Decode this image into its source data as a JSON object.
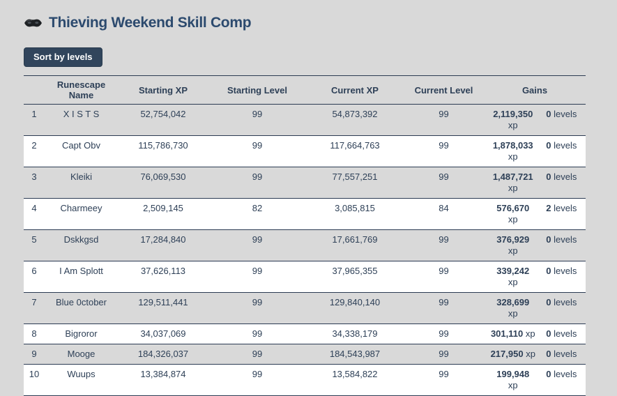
{
  "header": {
    "title": "Thieving Weekend Skill Comp",
    "icon": "thieving-mask-icon"
  },
  "toolbar": {
    "sort_button_label": "Sort by levels"
  },
  "colors": {
    "page_background": "#d9d9d9",
    "title_blue": "#2c4a6e",
    "text_navy": "#2e4057",
    "button_bg": "#31455c",
    "row_stripe_white": "#ffffff",
    "divider_navy": "#2b3a52"
  },
  "table": {
    "columns": [
      "",
      "Runescape Name",
      "Starting XP",
      "Starting Level",
      "Current XP",
      "Current Level",
      "Gains"
    ],
    "rows": [
      {
        "rank": "1",
        "name": "X I S T S",
        "starting_xp": "52,754,042",
        "starting_level": "99",
        "current_xp": "54,873,392",
        "current_level": "99",
        "gains": {
          "xp_value": "2,119,350",
          "xp_unit": "xp",
          "xp_wrap": true,
          "levels_value": "0",
          "levels_unit": "levels"
        }
      },
      {
        "rank": "2",
        "name": "Capt Obv",
        "starting_xp": "115,786,730",
        "starting_level": "99",
        "current_xp": "117,664,763",
        "current_level": "99",
        "gains": {
          "xp_value": "1,878,033",
          "xp_unit": "xp",
          "xp_wrap": true,
          "levels_value": "0",
          "levels_unit": "levels"
        }
      },
      {
        "rank": "3",
        "name": "Kleiki",
        "starting_xp": "76,069,530",
        "starting_level": "99",
        "current_xp": "77,557,251",
        "current_level": "99",
        "gains": {
          "xp_value": "1,487,721",
          "xp_unit": "xp",
          "xp_wrap": true,
          "levels_value": "0",
          "levels_unit": "levels"
        }
      },
      {
        "rank": "4",
        "name": "Charmeey",
        "starting_xp": "2,509,145",
        "starting_level": "82",
        "current_xp": "3,085,815",
        "current_level": "84",
        "gains": {
          "xp_value": "576,670",
          "xp_unit": "xp",
          "xp_wrap": true,
          "levels_value": "2",
          "levels_unit": "levels"
        }
      },
      {
        "rank": "5",
        "name": "Dskkgsd",
        "starting_xp": "17,284,840",
        "starting_level": "99",
        "current_xp": "17,661,769",
        "current_level": "99",
        "gains": {
          "xp_value": "376,929",
          "xp_unit": "xp",
          "xp_wrap": true,
          "levels_value": "0",
          "levels_unit": "levels"
        }
      },
      {
        "rank": "6",
        "name": "I Am Splott",
        "starting_xp": "37,626,113",
        "starting_level": "99",
        "current_xp": "37,965,355",
        "current_level": "99",
        "gains": {
          "xp_value": "339,242",
          "xp_unit": "xp",
          "xp_wrap": true,
          "levels_value": "0",
          "levels_unit": "levels"
        }
      },
      {
        "rank": "7",
        "name": "Blue 0ctober",
        "starting_xp": "129,511,441",
        "starting_level": "99",
        "current_xp": "129,840,140",
        "current_level": "99",
        "gains": {
          "xp_value": "328,699",
          "xp_unit": "xp",
          "xp_wrap": true,
          "levels_value": "0",
          "levels_unit": "levels"
        }
      },
      {
        "rank": "8",
        "name": "Bigroror",
        "starting_xp": "34,037,069",
        "starting_level": "99",
        "current_xp": "34,338,179",
        "current_level": "99",
        "gains": {
          "xp_value": "301,110",
          "xp_unit": "xp",
          "xp_wrap": false,
          "levels_value": "0",
          "levels_unit": "levels"
        }
      },
      {
        "rank": "9",
        "name": "Mooge",
        "starting_xp": "184,326,037",
        "starting_level": "99",
        "current_xp": "184,543,987",
        "current_level": "99",
        "gains": {
          "xp_value": "217,950",
          "xp_unit": "xp",
          "xp_wrap": false,
          "levels_value": "0",
          "levels_unit": "levels"
        }
      },
      {
        "rank": "10",
        "name": "Wuups",
        "starting_xp": "13,384,874",
        "starting_level": "99",
        "current_xp": "13,584,822",
        "current_level": "99",
        "gains": {
          "xp_value": "199,948",
          "xp_unit": "xp",
          "xp_wrap": true,
          "levels_value": "0",
          "levels_unit": "levels"
        }
      }
    ]
  }
}
